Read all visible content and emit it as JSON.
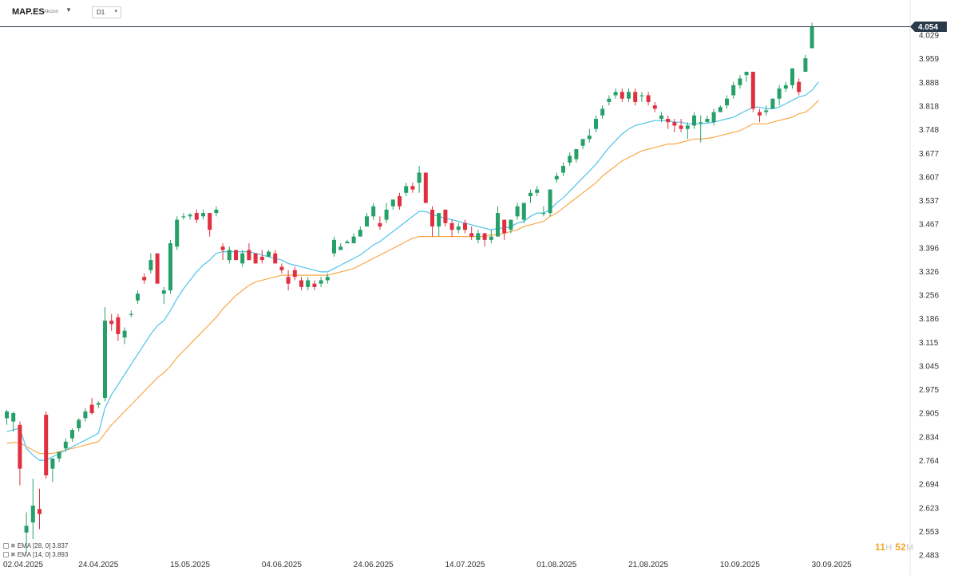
{
  "header": {
    "symbol": "MAP.ES",
    "symbol_type": "Akcion",
    "timeframe": "D1"
  },
  "legend": [
    {
      "label": "EMA",
      "params": "[28, 0]",
      "value": "3.837",
      "color": "#f9a84a"
    },
    {
      "label": "EMA",
      "params": "[14, 0]",
      "value": "3.893",
      "color": "#4fc3e8"
    }
  ],
  "clock": {
    "hours": "11",
    "h": "H",
    "minutes": "52",
    "m": "M"
  },
  "colors": {
    "up": "#26a069",
    "down": "#e0303f",
    "ema_fast": "#4fc3e8",
    "ema_slow": "#f9a84a",
    "price_line": "#2a3a4a",
    "tag": "#2a3a4a"
  },
  "chart_data": {
    "type": "candlestick",
    "y_ticks": [
      "4.029",
      "3.959",
      "3.888",
      "3.818",
      "3.748",
      "3.677",
      "3.607",
      "3.537",
      "3.467",
      "3.396",
      "3.326",
      "3.256",
      "3.186",
      "3.115",
      "3.045",
      "2.975",
      "2.905",
      "2.834",
      "2.764",
      "2.694",
      "2.623",
      "2.553",
      "2.483"
    ],
    "ylim": [
      2.483,
      4.064
    ],
    "x_labels": [
      "02.04.2025",
      "24.04.2025",
      "15.05.2025",
      "04.06.2025",
      "24.06.2025",
      "14.07.2025",
      "01.08.2025",
      "21.08.2025",
      "10.09.2025",
      "30.09.2025"
    ],
    "last_price": "4.054",
    "series": [
      {
        "name": "MAP.ES",
        "ohlc": [
          [
            2.89,
            2.915,
            2.87,
            2.91
          ],
          [
            2.88,
            2.91,
            2.85,
            2.905
          ],
          [
            2.87,
            2.88,
            2.69,
            2.74
          ],
          [
            2.55,
            2.61,
            2.49,
            2.57
          ],
          [
            2.58,
            2.71,
            2.53,
            2.63
          ],
          [
            2.62,
            2.68,
            2.56,
            2.605
          ],
          [
            2.9,
            2.91,
            2.71,
            2.72
          ],
          [
            2.74,
            2.77,
            2.7,
            2.77
          ],
          [
            2.77,
            2.79,
            2.76,
            2.79
          ],
          [
            2.8,
            2.83,
            2.79,
            2.82
          ],
          [
            2.83,
            2.86,
            2.82,
            2.855
          ],
          [
            2.86,
            2.89,
            2.85,
            2.885
          ],
          [
            2.89,
            2.92,
            2.88,
            2.91
          ],
          [
            2.93,
            2.95,
            2.9,
            2.905
          ],
          [
            2.93,
            2.94,
            2.92,
            2.935
          ],
          [
            2.95,
            3.22,
            2.94,
            3.18
          ],
          [
            3.18,
            3.2,
            3.15,
            3.17
          ],
          [
            3.19,
            3.2,
            3.12,
            3.14
          ],
          [
            3.13,
            3.16,
            3.11,
            3.15
          ],
          [
            3.2,
            3.21,
            3.19,
            3.2
          ],
          [
            3.24,
            3.27,
            3.23,
            3.26
          ],
          [
            3.31,
            3.32,
            3.29,
            3.3
          ],
          [
            3.33,
            3.38,
            3.32,
            3.36
          ],
          [
            3.38,
            3.38,
            3.29,
            3.29
          ],
          [
            3.26,
            3.28,
            3.23,
            3.27
          ],
          [
            3.27,
            3.42,
            3.26,
            3.41
          ],
          [
            3.4,
            3.49,
            3.39,
            3.48
          ],
          [
            3.49,
            3.5,
            3.48,
            3.49
          ],
          [
            3.49,
            3.5,
            3.48,
            3.495
          ],
          [
            3.5,
            3.51,
            3.47,
            3.48
          ],
          [
            3.49,
            3.51,
            3.48,
            3.5
          ],
          [
            3.5,
            3.5,
            3.43,
            3.45
          ],
          [
            3.5,
            3.52,
            3.49,
            3.51
          ],
          [
            3.4,
            3.41,
            3.36,
            3.39
          ],
          [
            3.36,
            3.4,
            3.35,
            3.39
          ],
          [
            3.39,
            3.39,
            3.36,
            3.36
          ],
          [
            3.35,
            3.39,
            3.34,
            3.38
          ],
          [
            3.39,
            3.41,
            3.36,
            3.36
          ],
          [
            3.38,
            3.38,
            3.35,
            3.35
          ],
          [
            3.37,
            3.39,
            3.35,
            3.36
          ],
          [
            3.37,
            3.39,
            3.37,
            3.385
          ],
          [
            3.38,
            3.39,
            3.35,
            3.35
          ],
          [
            3.34,
            3.35,
            3.32,
            3.33
          ],
          [
            3.31,
            3.33,
            3.27,
            3.29
          ],
          [
            3.33,
            3.34,
            3.3,
            3.31
          ],
          [
            3.3,
            3.31,
            3.27,
            3.28
          ],
          [
            3.28,
            3.31,
            3.27,
            3.3
          ],
          [
            3.29,
            3.3,
            3.27,
            3.28
          ],
          [
            3.29,
            3.31,
            3.28,
            3.3
          ],
          [
            3.3,
            3.32,
            3.29,
            3.31
          ],
          [
            3.38,
            3.43,
            3.37,
            3.42
          ],
          [
            3.39,
            3.41,
            3.39,
            3.4
          ],
          [
            3.41,
            3.42,
            3.41,
            3.415
          ],
          [
            3.41,
            3.44,
            3.41,
            3.43
          ],
          [
            3.43,
            3.46,
            3.43,
            3.45
          ],
          [
            3.46,
            3.5,
            3.46,
            3.49
          ],
          [
            3.49,
            3.53,
            3.48,
            3.52
          ],
          [
            3.47,
            3.49,
            3.45,
            3.46
          ],
          [
            3.48,
            3.53,
            3.47,
            3.51
          ],
          [
            3.52,
            3.54,
            3.51,
            3.54
          ],
          [
            3.55,
            3.56,
            3.51,
            3.52
          ],
          [
            3.56,
            3.59,
            3.55,
            3.58
          ],
          [
            3.58,
            3.59,
            3.56,
            3.57
          ],
          [
            3.59,
            3.64,
            3.56,
            3.62
          ],
          [
            3.62,
            3.62,
            3.53,
            3.53
          ],
          [
            3.51,
            3.52,
            3.43,
            3.46
          ],
          [
            3.46,
            3.5,
            3.43,
            3.5
          ],
          [
            3.51,
            3.51,
            3.46,
            3.47
          ],
          [
            3.47,
            3.48,
            3.43,
            3.45
          ],
          [
            3.45,
            3.47,
            3.44,
            3.46
          ],
          [
            3.47,
            3.48,
            3.44,
            3.45
          ],
          [
            3.44,
            3.46,
            3.42,
            3.43
          ],
          [
            3.42,
            3.45,
            3.41,
            3.44
          ],
          [
            3.44,
            3.44,
            3.4,
            3.42
          ],
          [
            3.42,
            3.45,
            3.41,
            3.43
          ],
          [
            3.43,
            3.52,
            3.43,
            3.5
          ],
          [
            3.48,
            3.48,
            3.42,
            3.44
          ],
          [
            3.45,
            3.48,
            3.44,
            3.48
          ],
          [
            3.49,
            3.53,
            3.48,
            3.52
          ],
          [
            3.48,
            3.53,
            3.47,
            3.53
          ],
          [
            3.55,
            3.57,
            3.53,
            3.56
          ],
          [
            3.56,
            3.58,
            3.55,
            3.57
          ],
          [
            3.5,
            3.52,
            3.49,
            3.5
          ],
          [
            3.5,
            3.57,
            3.49,
            3.57
          ],
          [
            3.6,
            3.62,
            3.59,
            3.61
          ],
          [
            3.62,
            3.65,
            3.61,
            3.64
          ],
          [
            3.65,
            3.68,
            3.64,
            3.67
          ],
          [
            3.66,
            3.69,
            3.65,
            3.69
          ],
          [
            3.7,
            3.72,
            3.69,
            3.72
          ],
          [
            3.72,
            3.75,
            3.71,
            3.73
          ],
          [
            3.75,
            3.79,
            3.74,
            3.78
          ],
          [
            3.79,
            3.82,
            3.78,
            3.81
          ],
          [
            3.83,
            3.85,
            3.82,
            3.84
          ],
          [
            3.85,
            3.87,
            3.84,
            3.86
          ],
          [
            3.86,
            3.87,
            3.83,
            3.84
          ],
          [
            3.84,
            3.87,
            3.83,
            3.86
          ],
          [
            3.86,
            3.87,
            3.82,
            3.83
          ],
          [
            3.85,
            3.86,
            3.83,
            3.85
          ],
          [
            3.85,
            3.86,
            3.82,
            3.83
          ],
          [
            3.82,
            3.83,
            3.8,
            3.81
          ],
          [
            3.78,
            3.8,
            3.77,
            3.79
          ],
          [
            3.78,
            3.79,
            3.75,
            3.77
          ],
          [
            3.77,
            3.78,
            3.74,
            3.76
          ],
          [
            3.76,
            3.78,
            3.74,
            3.75
          ],
          [
            3.75,
            3.77,
            3.72,
            3.76
          ],
          [
            3.76,
            3.8,
            3.75,
            3.79
          ],
          [
            3.77,
            3.79,
            3.71,
            3.77
          ],
          [
            3.77,
            3.79,
            3.77,
            3.78
          ],
          [
            3.77,
            3.81,
            3.76,
            3.8
          ],
          [
            3.8,
            3.82,
            3.8,
            3.815
          ],
          [
            3.82,
            3.85,
            3.81,
            3.84
          ],
          [
            3.85,
            3.89,
            3.84,
            3.88
          ],
          [
            3.88,
            3.91,
            3.87,
            3.9
          ],
          [
            3.91,
            3.92,
            3.89,
            3.92
          ],
          [
            3.92,
            3.92,
            3.8,
            3.81
          ],
          [
            3.8,
            3.81,
            3.77,
            3.79
          ],
          [
            3.8,
            3.82,
            3.79,
            3.805
          ],
          [
            3.81,
            3.84,
            3.81,
            3.84
          ],
          [
            3.84,
            3.88,
            3.82,
            3.87
          ],
          [
            3.87,
            3.89,
            3.86,
            3.88
          ],
          [
            3.88,
            3.93,
            3.87,
            3.93
          ],
          [
            3.89,
            3.9,
            3.85,
            3.86
          ],
          [
            3.92,
            3.97,
            3.92,
            3.96
          ],
          [
            3.99,
            4.066,
            3.99,
            4.054
          ]
        ]
      },
      {
        "name": "EMA",
        "params": "[14, 0]",
        "values": [
          2.85,
          2.855,
          2.86,
          2.8,
          2.78,
          2.765,
          2.765,
          2.775,
          2.785,
          2.795,
          2.805,
          2.815,
          2.825,
          2.835,
          2.845,
          2.92,
          2.96,
          2.99,
          3.02,
          3.05,
          3.08,
          3.11,
          3.14,
          3.165,
          3.18,
          3.21,
          3.245,
          3.275,
          3.3,
          3.325,
          3.345,
          3.36,
          3.38,
          3.385,
          3.385,
          3.385,
          3.385,
          3.385,
          3.38,
          3.375,
          3.37,
          3.365,
          3.36,
          3.35,
          3.345,
          3.34,
          3.335,
          3.33,
          3.325,
          3.325,
          3.335,
          3.345,
          3.355,
          3.365,
          3.375,
          3.39,
          3.405,
          3.415,
          3.43,
          3.445,
          3.46,
          3.475,
          3.49,
          3.505,
          3.505,
          3.495,
          3.49,
          3.485,
          3.48,
          3.475,
          3.47,
          3.465,
          3.46,
          3.455,
          3.45,
          3.455,
          3.455,
          3.46,
          3.47,
          3.475,
          3.49,
          3.5,
          3.5,
          3.51,
          3.53,
          3.545,
          3.565,
          3.585,
          3.605,
          3.625,
          3.645,
          3.67,
          3.695,
          3.715,
          3.735,
          3.75,
          3.76,
          3.765,
          3.77,
          3.775,
          3.775,
          3.775,
          3.77,
          3.77,
          3.765,
          3.765,
          3.765,
          3.767,
          3.77,
          3.775,
          3.78,
          3.785,
          3.795,
          3.805,
          3.815,
          3.815,
          3.81,
          3.81,
          3.815,
          3.825,
          3.835,
          3.845,
          3.85,
          3.865,
          3.89
        ]
      },
      {
        "name": "EMA",
        "params": "[28, 0]",
        "values": [
          2.815,
          2.818,
          2.818,
          2.805,
          2.795,
          2.785,
          2.785,
          2.785,
          2.79,
          2.795,
          2.8,
          2.805,
          2.81,
          2.815,
          2.82,
          2.845,
          2.87,
          2.89,
          2.91,
          2.93,
          2.95,
          2.97,
          2.99,
          3.01,
          3.025,
          3.045,
          3.07,
          3.09,
          3.11,
          3.13,
          3.15,
          3.17,
          3.19,
          3.215,
          3.235,
          3.255,
          3.27,
          3.285,
          3.295,
          3.3,
          3.305,
          3.31,
          3.315,
          3.315,
          3.315,
          3.315,
          3.315,
          3.315,
          3.315,
          3.315,
          3.32,
          3.325,
          3.33,
          3.335,
          3.345,
          3.355,
          3.365,
          3.375,
          3.385,
          3.395,
          3.405,
          3.415,
          3.425,
          3.43,
          3.43,
          3.43,
          3.43,
          3.43,
          3.43,
          3.43,
          3.43,
          3.43,
          3.43,
          3.43,
          3.435,
          3.435,
          3.44,
          3.445,
          3.45,
          3.46,
          3.465,
          3.47,
          3.475,
          3.49,
          3.5,
          3.515,
          3.53,
          3.545,
          3.56,
          3.575,
          3.59,
          3.61,
          3.625,
          3.64,
          3.655,
          3.665,
          3.675,
          3.685,
          3.69,
          3.695,
          3.7,
          3.705,
          3.705,
          3.71,
          3.715,
          3.72,
          3.72,
          3.722,
          3.725,
          3.73,
          3.735,
          3.74,
          3.745,
          3.755,
          3.765,
          3.765,
          3.765,
          3.77,
          3.775,
          3.78,
          3.785,
          3.795,
          3.8,
          3.815,
          3.835
        ]
      }
    ]
  }
}
